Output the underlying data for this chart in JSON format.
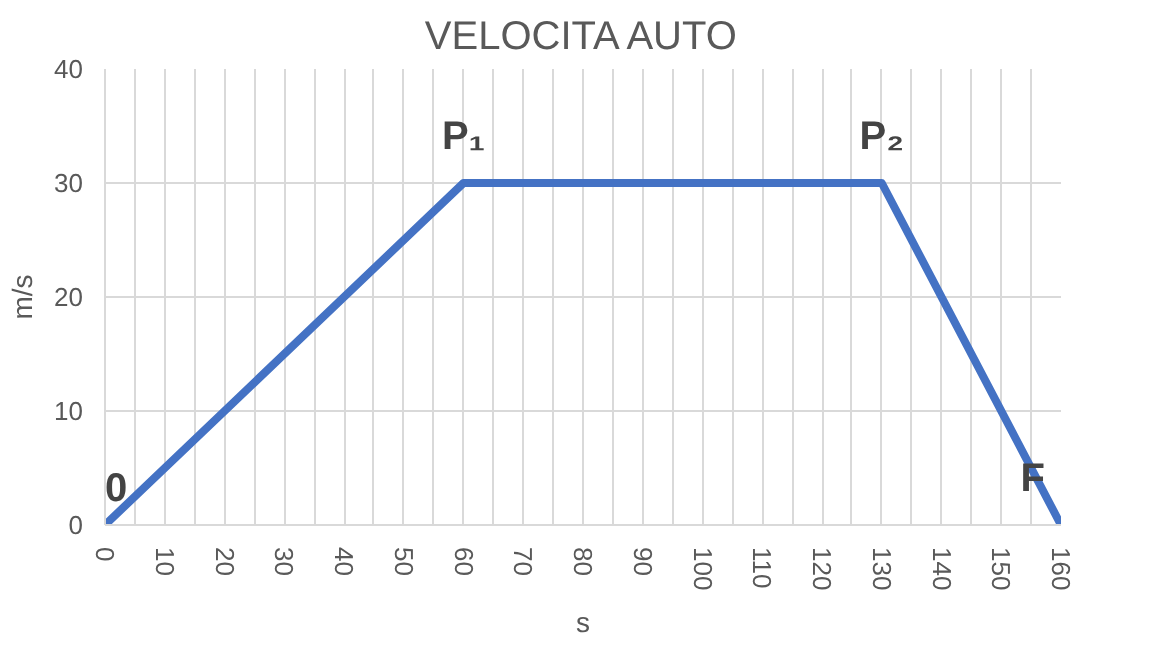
{
  "chart_data": {
    "type": "line",
    "title": "VELOCITA AUTO",
    "xlabel": "s",
    "ylabel": "m/s",
    "x": [
      0,
      60,
      130,
      160
    ],
    "series": [
      {
        "color": "#4472c4",
        "values": [
          0,
          30,
          30,
          0
        ]
      }
    ],
    "xlim": [
      0,
      160
    ],
    "ylim": [
      0,
      40
    ],
    "xticks": [
      0,
      {
        "value": 5,
        "label": null
      },
      10,
      {
        "value": 15,
        "label": null
      },
      20,
      {
        "value": 25,
        "label": null
      },
      30,
      {
        "value": 35,
        "label": null
      },
      40,
      {
        "value": 45,
        "label": null
      },
      50,
      {
        "value": 55,
        "label": null
      },
      60,
      {
        "value": 65,
        "label": null
      },
      70,
      {
        "value": 75,
        "label": null
      },
      80,
      {
        "value": 85,
        "label": null
      },
      90,
      {
        "value": 95,
        "label": null
      },
      100,
      {
        "value": 105,
        "label": null
      },
      110,
      {
        "value": 115,
        "label": null
      },
      120,
      {
        "value": 125,
        "label": null
      },
      130,
      {
        "value": 135,
        "label": null
      },
      140,
      {
        "value": 145,
        "label": null
      },
      150,
      {
        "value": 155,
        "label": null
      },
      160
    ],
    "yticks": [
      0,
      10,
      20,
      30,
      40
    ],
    "grid": true,
    "marker": "none",
    "line_style": "solid",
    "annotations": [
      {
        "text": "0",
        "x": 0,
        "y": 0
      },
      {
        "text": "P₁",
        "x": 60,
        "y": 30
      },
      {
        "text": "P₂",
        "x": 130,
        "y": 30
      },
      {
        "text": "F",
        "x": 160,
        "y": 0
      }
    ]
  }
}
